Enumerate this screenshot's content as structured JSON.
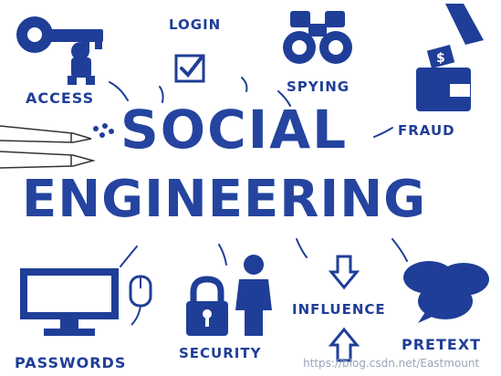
{
  "headline": {
    "line1": "SOCIAL",
    "line2": "ENGINEERING"
  },
  "labels": {
    "access": "ACCESS",
    "login": "LOGIN",
    "spying": "SPYING",
    "fraud": "FRAUD",
    "passwords": "PASSWORDS",
    "security": "SECURITY",
    "influence": "INFLUENCE",
    "pretext": "PRETEXT"
  },
  "watermark": "https://blog.csdn.net/Eastmount",
  "colors": {
    "ink": "#1f3e98",
    "background": "#ffffff"
  },
  "icons": [
    "key-icon",
    "checkbox-icon",
    "binoculars-icon",
    "wallet-icon",
    "pencil-icon",
    "computer-icon",
    "mouse-icon",
    "padlock-icon",
    "person-icon",
    "arrow-down-icon",
    "arrow-up-icon",
    "speech-bubbles-icon"
  ]
}
